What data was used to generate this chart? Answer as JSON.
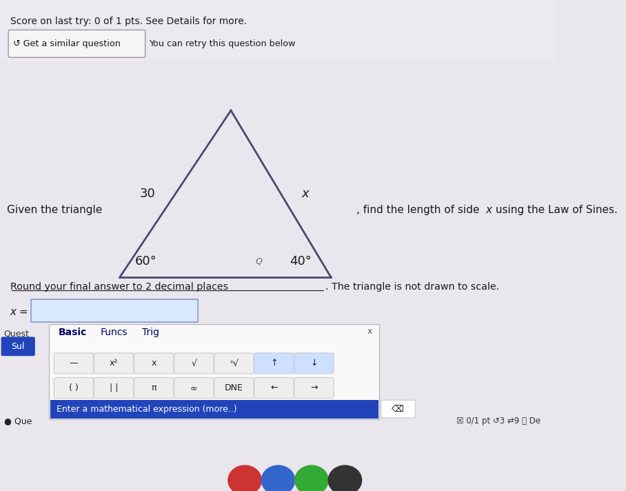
{
  "bg_color": "#eae6ed",
  "header_bg": "#ede9f1",
  "header_text": "Score on last try: 0 of 1 pts. See Details for more.",
  "button_text": "↺ Get a similar question",
  "button_subtext": "You can retry this question below",
  "given_text": "Given the triangle",
  "find_text1": ", find the length of side ",
  "find_x": "x",
  "find_text2": " using the Law of Sines.",
  "side_left_label": "30",
  "side_right_label": "x",
  "angle_left_label": "60°",
  "angle_right_label": "40°",
  "round_underline": "Round your final answer to 2 decimal places",
  "round_rest": ". The triangle is not drawn to scale.",
  "x_eq_text": "x =",
  "calc_tab1": "Basic",
  "calc_tab2": "Funcs",
  "calc_tab3": "Trig",
  "calc_row1": [
    "—",
    "x²",
    "x",
    "√",
    "ⁿ√",
    "↑",
    "↓"
  ],
  "calc_row2": [
    "( )",
    "| |",
    "π",
    "∞",
    "DNE",
    "←",
    "→"
  ],
  "calc_input_text": "Enter a mathematical expression (more..)",
  "quest_label": "Quest",
  "sul_label": "Sul",
  "que_label": "● Que",
  "footer_text": "☒ 0/1 pt ↺3 ⇄9 ⓘ De",
  "cross_x_label": "x",
  "triangle_apex": [
    0.415,
    0.775
  ],
  "triangle_bl": [
    0.215,
    0.435
  ],
  "triangle_br": [
    0.595,
    0.435
  ],
  "line_color": "#4a4870",
  "text_color": "#1a1a1a",
  "label_fs": 13,
  "header_fs": 10,
  "body_fs": 11,
  "calc_fs": 10,
  "button_bg": "#f5f5f5",
  "input_bg": "#d9eaff",
  "calc_bg": "#f9f9f9",
  "blue_bar": "#2244bb",
  "navy": "#000066",
  "tab_line": "#000080",
  "calc_btn_bg": "#eeeeee",
  "highlight_btn_bg": "#cde0ff",
  "border_color": "#bbbbbb"
}
